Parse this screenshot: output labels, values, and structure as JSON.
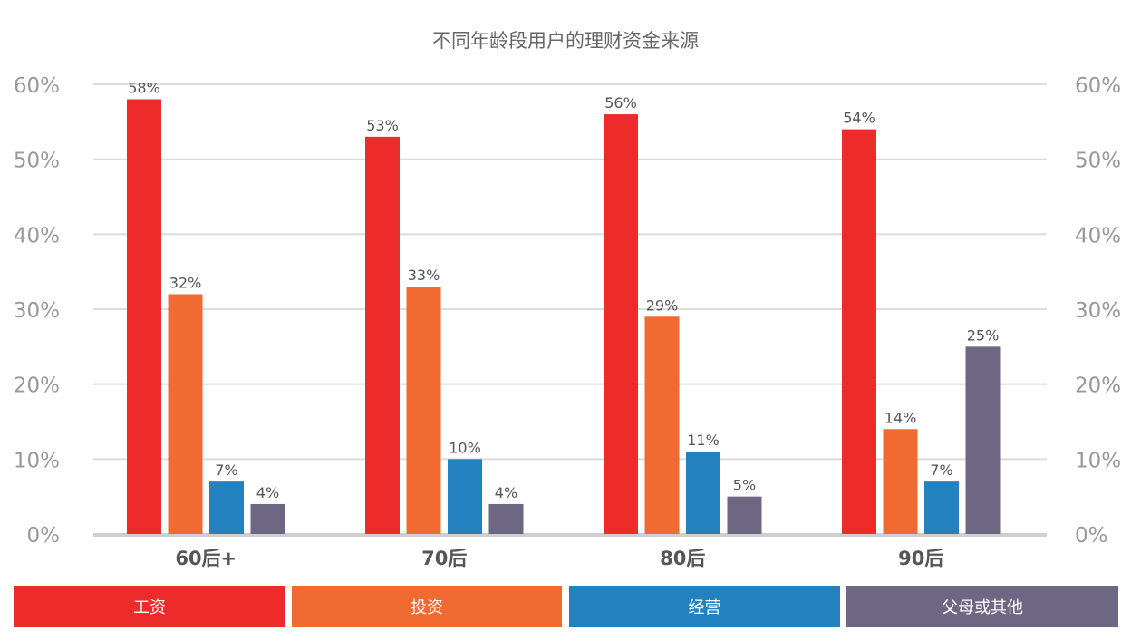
{
  "chart_data": {
    "type": "bar",
    "title": "不同年龄段用户的理财资金来源",
    "categories": [
      "60后+",
      "70后",
      "80后",
      "90后"
    ],
    "series": [
      {
        "name": "工资",
        "color": "#ed2b2b",
        "values": [
          58,
          53,
          56,
          54
        ],
        "labels": [
          "58%",
          "53%",
          "56%",
          "54%"
        ]
      },
      {
        "name": "投资",
        "color": "#f06a32",
        "values": [
          32,
          33,
          29,
          14
        ],
        "labels": [
          "32%",
          "33%",
          "29%",
          "14%"
        ]
      },
      {
        "name": "经营",
        "color": "#2381bf",
        "values": [
          7,
          10,
          11,
          7
        ],
        "labels": [
          "7%",
          "10%",
          "11%",
          "7%"
        ]
      },
      {
        "name": "父母或其他",
        "color": "#6d6783",
        "values": [
          4,
          4,
          5,
          25
        ],
        "labels": [
          "4%",
          "4%",
          "5%",
          "25%"
        ]
      }
    ],
    "yticks": [
      "0%",
      "10%",
      "20%",
      "30%",
      "40%",
      "50%",
      "60%"
    ],
    "ylim": [
      0,
      60
    ],
    "xlabel": "",
    "ylabel": "",
    "grid": true,
    "secondary_axis": true,
    "legend_position": "bottom"
  }
}
